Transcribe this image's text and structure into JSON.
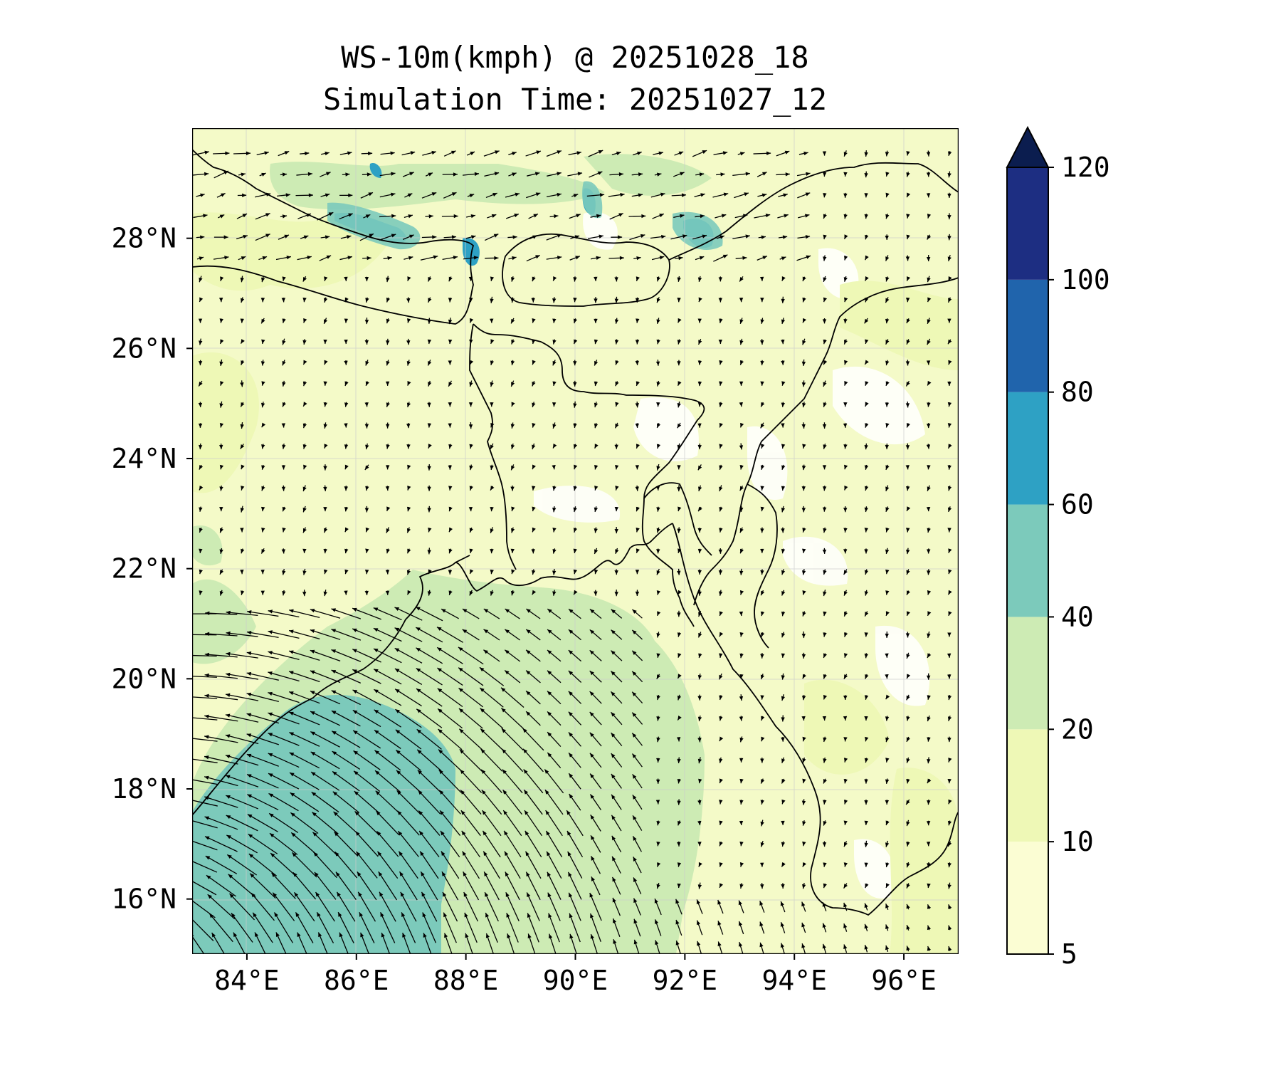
{
  "figure": {
    "title_line1": "WS-10m(kmph) @ 20251028_18",
    "title_line2": "Simulation Time: 20251027_12"
  },
  "map": {
    "lon_range": [
      83,
      97
    ],
    "lat_range": [
      15,
      30
    ],
    "x_ticks": [
      {
        "value": 84,
        "label": "84°E"
      },
      {
        "value": 86,
        "label": "86°E"
      },
      {
        "value": 88,
        "label": "88°E"
      },
      {
        "value": 90,
        "label": "90°E"
      },
      {
        "value": 92,
        "label": "92°E"
      },
      {
        "value": 94,
        "label": "94°E"
      },
      {
        "value": 96,
        "label": "96°E"
      }
    ],
    "y_ticks": [
      {
        "value": 16,
        "label": "16°N"
      },
      {
        "value": 18,
        "label": "18°N"
      },
      {
        "value": 20,
        "label": "20°N"
      },
      {
        "value": 22,
        "label": "22°N"
      },
      {
        "value": 24,
        "label": "24°N"
      },
      {
        "value": 26,
        "label": "26°N"
      },
      {
        "value": 28,
        "label": "28°N"
      }
    ],
    "gridlines": true,
    "wind_vectors": "cyclonic circulation over the southwestern Bay of Bengal, strongest near 84–88°E, 15–20°N; weak winds over land"
  },
  "colorbar": {
    "levels": [
      5,
      10,
      20,
      40,
      60,
      80,
      100,
      120
    ],
    "tick_labels": [
      "5",
      "10",
      "20",
      "40",
      "60",
      "80",
      "100",
      "120"
    ],
    "colors": [
      "#fbfdd3",
      "#eef8b6",
      "#cdebb4",
      "#7ccabb",
      "#2ea1c4",
      "#2064ac",
      "#1d2e82"
    ],
    "extend_color": "#0b1d4f",
    "extend": "max"
  },
  "colors": {
    "land_base": "#f4fac8",
    "low_wind": "#ffffff",
    "band_10_20": "#eef8b6",
    "band_20_40": "#cdebb4",
    "band_40_60": "#7ccabb",
    "band_60_80": "#2ea1c4",
    "arrow": "#000000",
    "border": "#000000"
  }
}
